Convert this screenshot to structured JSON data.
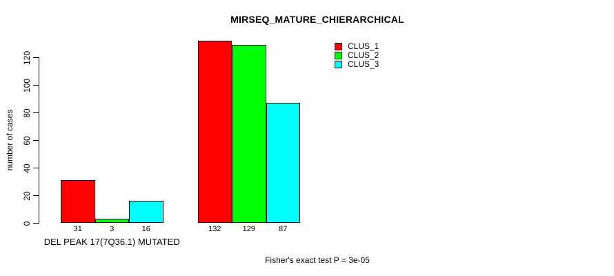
{
  "chart_data": {
    "type": "bar",
    "title": "MIRSEQ_MATURE_CHIERARCHICAL",
    "ylabel": "number of cases",
    "xlabel": "",
    "ylim": [
      0,
      132
    ],
    "yticks": [
      0,
      20,
      40,
      60,
      80,
      100,
      120
    ],
    "categories": [
      "DEL PEAK 17(7Q36.1) MUTATED",
      ""
    ],
    "series": [
      {
        "name": "CLUS_1",
        "color": "#ff0000",
        "values": [
          31,
          132
        ]
      },
      {
        "name": "CLUS_2",
        "color": "#00ff00",
        "values": [
          3,
          129
        ]
      },
      {
        "name": "CLUS_3",
        "color": "#00ffff",
        "values": [
          16,
          87
        ]
      }
    ],
    "bar_value_labels": [
      [
        "31",
        "3",
        "16"
      ],
      [
        "132",
        "129",
        "87"
      ]
    ],
    "annotation": "Fisher's exact test P = 3e-05",
    "legend_position": "top-right-inside",
    "grid": false,
    "background": "#ffffff"
  }
}
